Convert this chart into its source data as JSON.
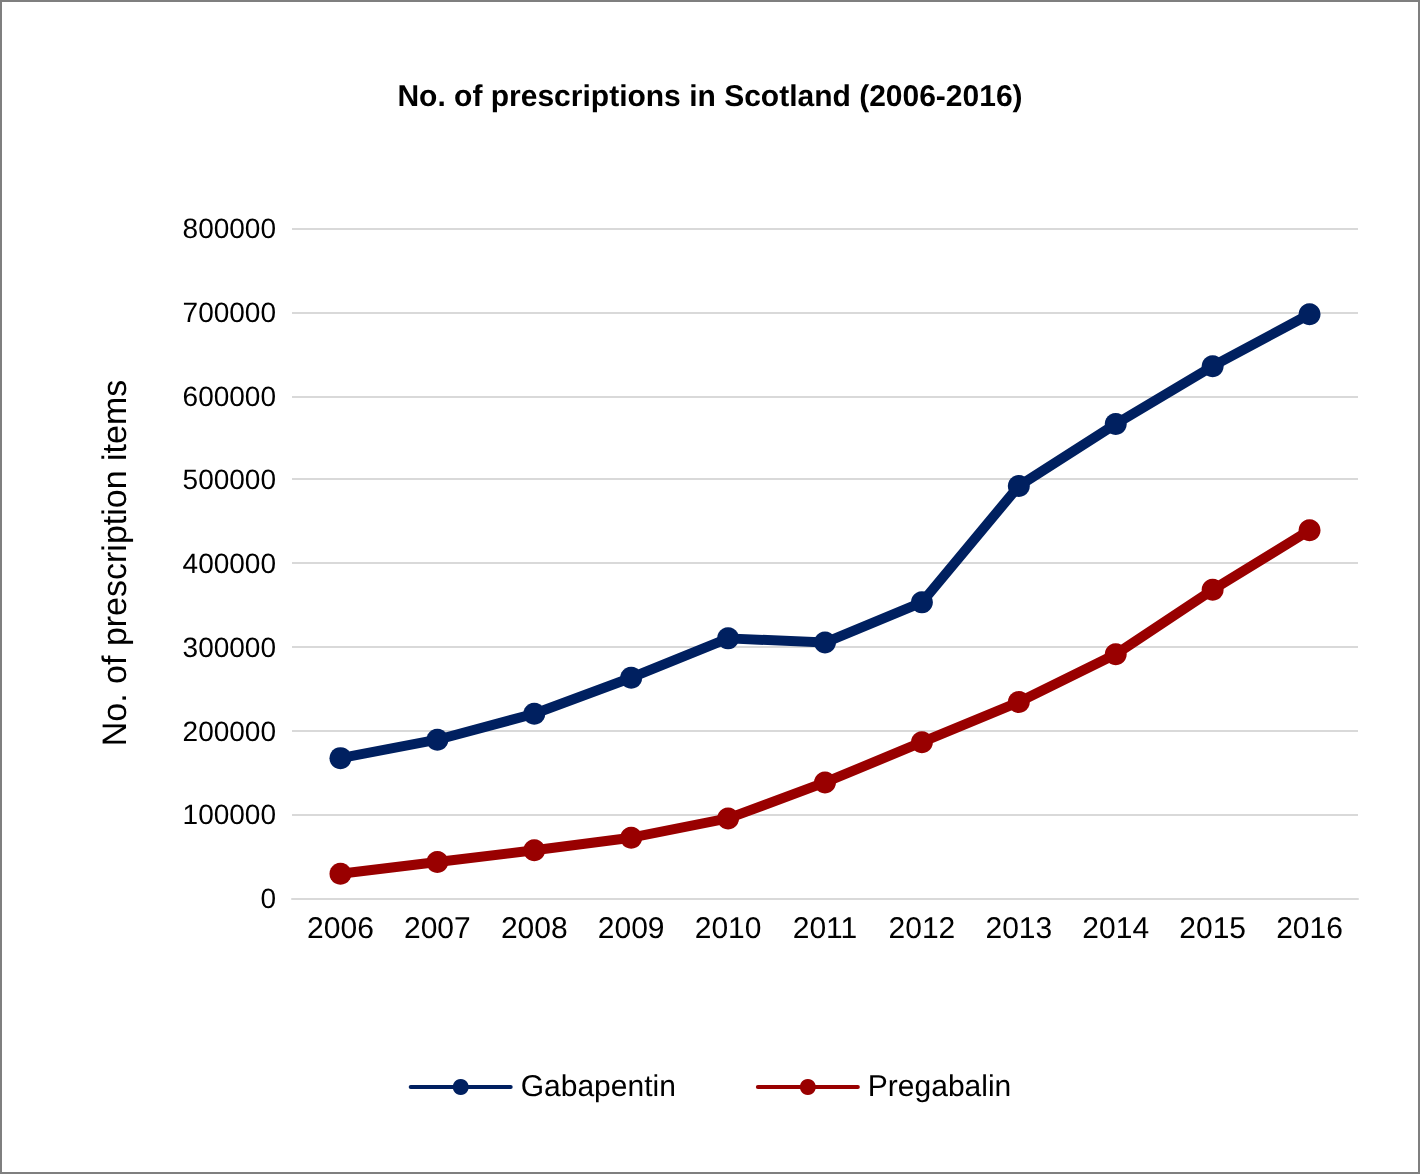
{
  "chart_data": {
    "type": "line",
    "title": "No. of prescriptions in Scotland (2006-2016)",
    "ylabel": "No. of prescription items",
    "categories": [
      "2006",
      "2007",
      "2008",
      "2009",
      "2010",
      "2011",
      "2012",
      "2013",
      "2014",
      "2015",
      "2016"
    ],
    "series": [
      {
        "name": "Gabapentin",
        "color": "#002060",
        "values": [
          167000,
          189000,
          220000,
          263000,
          310000,
          305000,
          353000,
          492000,
          566000,
          635000,
          697000
        ]
      },
      {
        "name": "Pregabalin",
        "color": "#990000",
        "values": [
          29000,
          43000,
          57000,
          72000,
          95000,
          138000,
          186000,
          234000,
          291000,
          368000,
          439000
        ]
      }
    ],
    "ylim": [
      0,
      800000
    ],
    "yticks": [
      0,
      100000,
      200000,
      300000,
      400000,
      500000,
      600000,
      700000,
      800000
    ],
    "grid": "y",
    "legend": "bottom",
    "marker": "circle",
    "line_style": "solid"
  }
}
